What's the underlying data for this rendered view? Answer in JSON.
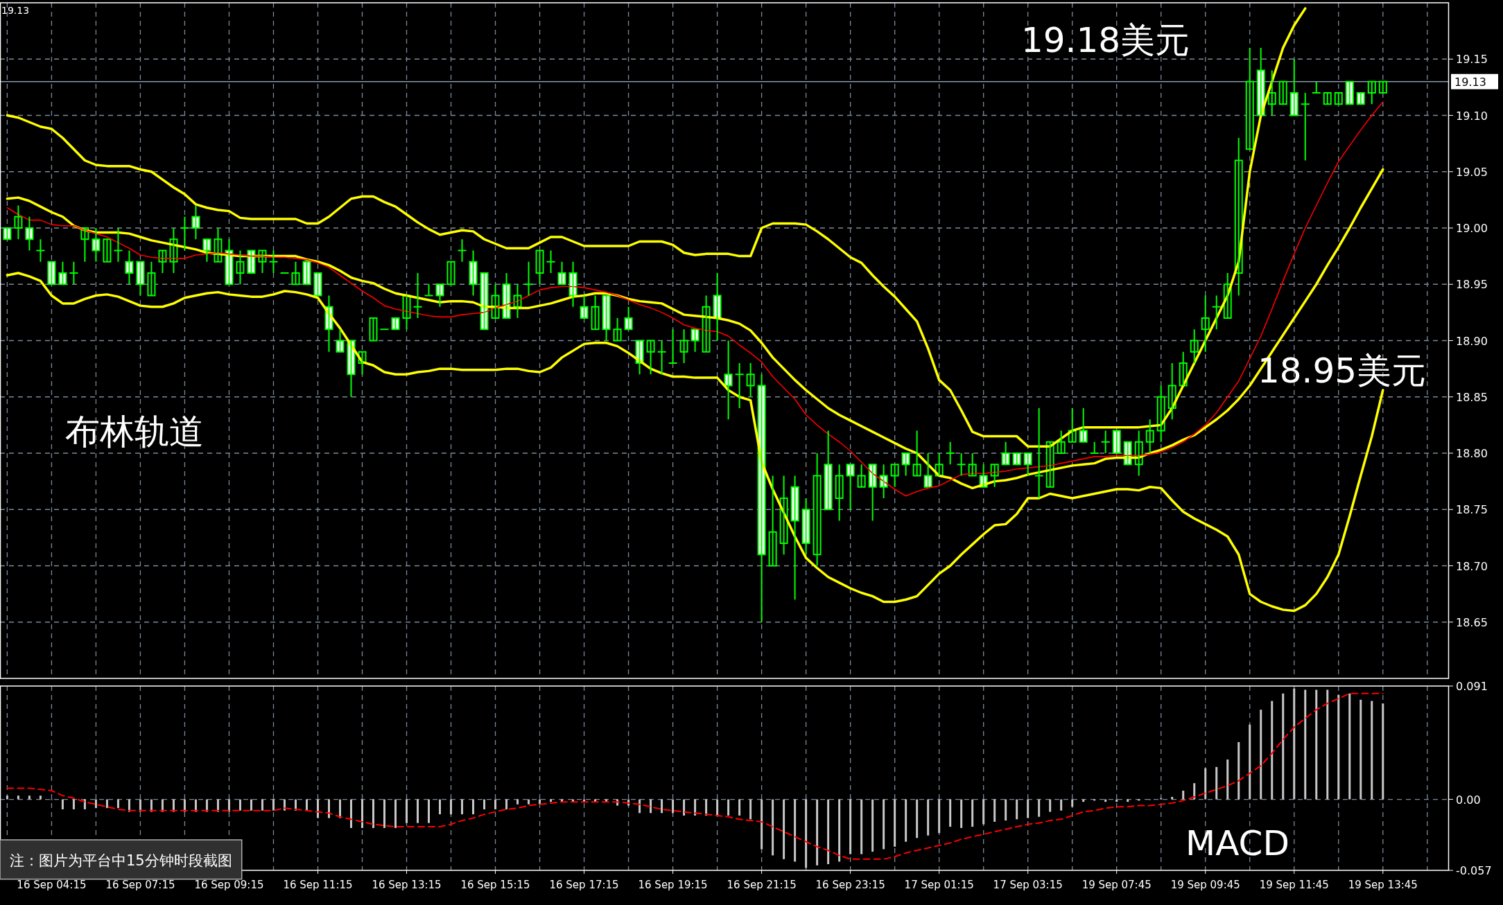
{
  "chart_data": [
    {
      "type": "candlestick",
      "color": "#00ff00",
      "categories": [
        null,
        null,
        null,
        null,
        null,
        null,
        null,
        null,
        null,
        null,
        null,
        null,
        null,
        null,
        null,
        null,
        null,
        null,
        null,
        null,
        null,
        null,
        null,
        null,
        null,
        null,
        null,
        null,
        null,
        null,
        null,
        null,
        null,
        null,
        null,
        null,
        null,
        null,
        null,
        null,
        null,
        null,
        null,
        null,
        null,
        null,
        null,
        null,
        null,
        null,
        null,
        null,
        null,
        null,
        null,
        null,
        null,
        null,
        null,
        null,
        null,
        null,
        null,
        null,
        null,
        null,
        null,
        null,
        null,
        null,
        null,
        null,
        null,
        null,
        null,
        null,
        null,
        null,
        null,
        null,
        null,
        null,
        null,
        null,
        null,
        null,
        null,
        null,
        null,
        null,
        null,
        null,
        null,
        null,
        null,
        null,
        null,
        null,
        null,
        null,
        null,
        null,
        null,
        null,
        null,
        null,
        null,
        null,
        null,
        null,
        null,
        null,
        null,
        null,
        null,
        null,
        null,
        null,
        null,
        null,
        null,
        null,
        null,
        null,
        null
      ],
      "ohlc": [
        [
          19.0,
          19.0,
          18.99,
          18.99
        ],
        [
          19.0,
          19.02,
          18.99,
          19.01
        ],
        [
          19.0,
          19.01,
          18.98,
          18.99
        ],
        [
          18.98,
          18.99,
          18.97,
          18.98
        ],
        [
          18.97,
          18.97,
          18.95,
          18.95
        ],
        [
          18.96,
          18.97,
          18.95,
          18.95
        ],
        [
          18.96,
          18.97,
          18.95,
          18.96
        ],
        [
          18.99,
          19.0,
          18.97,
          19.0
        ],
        [
          18.99,
          19.0,
          18.97,
          18.98
        ],
        [
          18.97,
          18.99,
          18.97,
          18.99
        ],
        [
          18.98,
          19.0,
          18.97,
          18.98
        ],
        [
          18.97,
          18.98,
          18.95,
          18.96
        ],
        [
          18.97,
          18.97,
          18.94,
          18.95
        ],
        [
          18.94,
          18.97,
          18.94,
          18.96
        ],
        [
          18.97,
          18.98,
          18.96,
          18.98
        ],
        [
          18.97,
          19.0,
          18.96,
          18.99
        ],
        [
          19.0,
          19.01,
          18.98,
          19.0
        ],
        [
          19.01,
          19.02,
          18.99,
          19.0
        ],
        [
          18.99,
          18.99,
          18.97,
          18.98
        ],
        [
          18.97,
          19.0,
          18.97,
          18.99
        ],
        [
          18.98,
          18.99,
          18.95,
          18.95
        ],
        [
          18.96,
          18.98,
          18.95,
          18.97
        ],
        [
          18.98,
          18.98,
          18.96,
          18.96
        ],
        [
          18.97,
          18.98,
          18.96,
          18.98
        ],
        [
          18.97,
          18.98,
          18.96,
          18.97
        ],
        [
          18.96,
          18.96,
          18.96,
          18.96
        ],
        [
          18.95,
          18.97,
          18.95,
          18.96
        ],
        [
          18.97,
          18.97,
          18.95,
          18.95
        ],
        [
          18.96,
          18.96,
          18.94,
          18.94
        ],
        [
          18.93,
          18.94,
          18.89,
          18.91
        ],
        [
          18.9,
          18.91,
          18.89,
          18.89
        ],
        [
          18.9,
          18.9,
          18.85,
          18.87
        ],
        [
          18.88,
          18.89,
          18.87,
          18.89
        ],
        [
          18.9,
          18.92,
          18.9,
          18.92
        ],
        [
          18.91,
          18.91,
          18.91,
          18.91
        ],
        [
          18.92,
          18.92,
          18.91,
          18.91
        ],
        [
          18.92,
          18.94,
          18.91,
          18.94
        ],
        [
          18.93,
          18.96,
          18.92,
          18.93
        ],
        [
          18.94,
          18.95,
          18.94,
          18.94
        ],
        [
          18.95,
          18.95,
          18.93,
          18.94
        ],
        [
          18.95,
          18.97,
          18.95,
          18.97
        ],
        [
          18.98,
          18.99,
          18.97,
          18.98
        ],
        [
          18.97,
          18.98,
          18.94,
          18.95
        ],
        [
          18.96,
          18.96,
          18.91,
          18.91
        ],
        [
          18.92,
          18.95,
          18.92,
          18.94
        ],
        [
          18.95,
          18.96,
          18.92,
          18.92
        ],
        [
          18.93,
          18.95,
          18.92,
          18.94
        ],
        [
          18.95,
          18.97,
          18.94,
          18.95
        ],
        [
          18.96,
          18.98,
          18.95,
          18.98
        ],
        [
          18.97,
          18.98,
          18.96,
          18.97
        ],
        [
          18.96,
          18.97,
          18.95,
          18.95
        ],
        [
          18.96,
          18.97,
          18.93,
          18.94
        ],
        [
          18.93,
          18.94,
          18.92,
          18.92
        ],
        [
          18.91,
          18.94,
          18.91,
          18.93
        ],
        [
          18.94,
          18.94,
          18.9,
          18.91
        ],
        [
          18.9,
          18.92,
          18.9,
          18.91
        ],
        [
          18.92,
          18.93,
          18.91,
          18.91
        ],
        [
          18.9,
          18.9,
          18.87,
          18.88
        ],
        [
          18.89,
          18.9,
          18.87,
          18.9
        ],
        [
          18.89,
          18.9,
          18.87,
          18.89
        ],
        [
          18.88,
          18.91,
          18.88,
          18.88
        ],
        [
          18.89,
          18.91,
          18.88,
          18.9
        ],
        [
          18.91,
          18.91,
          18.89,
          18.9
        ],
        [
          18.89,
          18.94,
          18.89,
          18.93
        ],
        [
          18.94,
          18.96,
          18.9,
          18.92
        ],
        [
          18.87,
          18.9,
          18.83,
          18.86
        ],
        [
          18.87,
          18.88,
          18.84,
          18.87
        ],
        [
          18.86,
          18.88,
          18.85,
          18.87
        ],
        [
          18.86,
          18.87,
          18.65,
          18.71
        ],
        [
          18.7,
          18.78,
          18.7,
          18.73
        ],
        [
          18.72,
          18.78,
          18.71,
          18.76
        ],
        [
          18.77,
          18.78,
          18.67,
          18.74
        ],
        [
          18.75,
          18.76,
          18.71,
          18.72
        ],
        [
          18.71,
          18.8,
          18.7,
          18.78
        ],
        [
          18.79,
          18.82,
          18.75,
          18.75
        ],
        [
          18.76,
          18.79,
          18.74,
          18.78
        ],
        [
          18.79,
          18.79,
          18.75,
          18.78
        ],
        [
          18.77,
          18.79,
          18.77,
          18.78
        ],
        [
          18.79,
          18.79,
          18.74,
          18.77
        ],
        [
          18.78,
          18.79,
          18.76,
          18.77
        ],
        [
          18.78,
          18.79,
          18.77,
          18.79
        ],
        [
          18.8,
          18.8,
          18.78,
          18.79
        ],
        [
          18.78,
          18.82,
          18.78,
          18.79
        ],
        [
          18.78,
          18.8,
          18.77,
          18.77
        ],
        [
          18.78,
          18.8,
          18.78,
          18.79
        ],
        [
          18.8,
          18.81,
          18.79,
          18.8
        ],
        [
          18.79,
          18.8,
          18.78,
          18.79
        ],
        [
          18.78,
          18.8,
          18.78,
          18.79
        ],
        [
          18.78,
          18.79,
          18.77,
          18.77
        ],
        [
          18.78,
          18.79,
          18.77,
          18.79
        ],
        [
          18.8,
          18.81,
          18.79,
          18.79
        ],
        [
          18.8,
          18.8,
          18.79,
          18.79
        ],
        [
          18.8,
          18.8,
          18.78,
          18.79
        ],
        [
          18.78,
          18.84,
          18.76,
          18.78
        ],
        [
          18.77,
          18.81,
          18.77,
          18.81
        ],
        [
          18.8,
          18.82,
          18.8,
          18.81
        ],
        [
          18.81,
          18.84,
          18.81,
          18.82
        ],
        [
          18.82,
          18.84,
          18.81,
          18.81
        ],
        [
          18.8,
          18.81,
          18.8,
          18.8
        ],
        [
          18.81,
          18.82,
          18.8,
          18.81
        ],
        [
          18.82,
          18.82,
          18.8,
          18.8
        ],
        [
          18.81,
          18.81,
          18.79,
          18.79
        ],
        [
          18.79,
          18.82,
          18.78,
          18.81
        ],
        [
          18.81,
          18.83,
          18.8,
          18.82
        ],
        [
          18.82,
          18.86,
          18.81,
          18.85
        ],
        [
          18.84,
          18.88,
          18.83,
          18.86
        ],
        [
          18.86,
          18.89,
          18.86,
          18.88
        ],
        [
          18.89,
          18.91,
          18.88,
          18.9
        ],
        [
          18.91,
          18.94,
          18.89,
          18.92
        ],
        [
          18.93,
          18.94,
          18.91,
          18.93
        ],
        [
          18.92,
          18.96,
          18.92,
          18.95
        ],
        [
          18.96,
          19.08,
          18.94,
          19.06
        ],
        [
          19.07,
          19.16,
          19.07,
          19.13
        ],
        [
          19.14,
          19.16,
          19.1,
          19.1
        ],
        [
          19.11,
          19.14,
          19.1,
          19.12
        ],
        [
          19.11,
          19.13,
          19.11,
          19.13
        ],
        [
          19.12,
          19.15,
          19.1,
          19.1
        ],
        [
          19.11,
          19.12,
          19.06,
          19.11
        ],
        [
          19.12,
          19.13,
          19.12,
          19.12
        ],
        [
          19.11,
          19.12,
          19.11,
          19.12
        ],
        [
          19.11,
          19.12,
          19.11,
          19.12
        ],
        [
          19.13,
          19.13,
          19.11,
          19.11
        ],
        [
          19.12,
          19.12,
          19.11,
          19.11
        ],
        [
          19.12,
          19.13,
          19.11,
          19.13
        ],
        [
          19.12,
          19.13,
          19.12,
          19.13
        ]
      ],
      "series": [
        {
          "type": "line",
          "color": "#ffff00",
          "values": [
            19.1,
            19.098,
            19.094,
            19.09,
            19.088,
            19.08,
            19.07,
            19.06,
            19.056,
            19.055,
            19.055,
            19.055,
            19.052,
            19.05,
            19.043,
            19.036,
            19.03,
            19.021,
            19.018,
            19.016,
            19.015,
            19.009,
            19.008,
            19.008,
            19.008,
            19.008,
            19.008,
            19.004,
            19.004,
            19.01,
            19.018,
            19.026,
            19.028,
            19.028,
            19.023,
            19.019,
            19.012,
            19.005,
            18.999,
            18.994,
            18.996,
            18.998,
            18.997,
            18.99,
            18.986,
            18.982,
            18.982,
            18.982,
            18.987,
            18.992,
            18.992,
            18.988,
            18.984,
            18.984,
            18.984,
            18.984,
            18.984,
            18.988,
            18.988,
            18.988,
            18.985,
            18.978,
            18.976,
            18.977,
            18.977,
            18.977,
            18.975,
            18.975,
            19.0,
            19.004,
            19.004,
            19.004,
            19.003,
            18.997,
            18.99,
            18.982,
            18.974,
            18.969,
            18.958,
            18.948,
            18.939,
            18.928,
            18.917,
            18.893,
            18.865,
            18.856,
            18.838,
            18.819,
            18.815,
            18.815,
            18.815,
            18.815,
            18.806,
            18.806,
            18.806,
            18.813,
            18.82,
            18.823,
            18.823,
            18.823,
            18.823,
            18.823,
            18.823,
            18.824,
            18.825,
            18.84,
            18.86,
            18.88,
            18.9,
            18.92,
            18.94,
            18.97,
            19.05,
            19.1,
            19.13,
            19.16,
            19.18,
            19.195,
            null,
            null,
            null,
            null,
            null,
            null,
            null
          ]
        },
        {
          "type": "line",
          "color": "#ffff00",
          "values": [
            19.026,
            19.027,
            19.024,
            19.019,
            19.014,
            19.01,
            19.002,
            18.998,
            18.996,
            18.996,
            18.996,
            18.995,
            18.992,
            18.989,
            18.987,
            18.985,
            18.983,
            18.981,
            18.978,
            18.977,
            18.976,
            18.975,
            18.975,
            18.975,
            18.975,
            18.975,
            18.975,
            18.972,
            18.97,
            18.967,
            18.962,
            18.956,
            18.953,
            18.951,
            18.946,
            18.942,
            18.94,
            18.938,
            18.936,
            18.934,
            18.935,
            18.935,
            18.934,
            18.93,
            18.93,
            18.929,
            18.929,
            18.929,
            18.931,
            18.933,
            18.936,
            18.939,
            18.94,
            18.942,
            18.942,
            18.94,
            18.937,
            18.935,
            18.934,
            18.933,
            18.928,
            18.923,
            18.922,
            18.921,
            18.92,
            18.918,
            18.915,
            18.909,
            18.898,
            18.885,
            18.875,
            18.865,
            18.856,
            18.848,
            18.84,
            18.834,
            18.829,
            18.824,
            18.819,
            18.814,
            18.809,
            18.804,
            18.8,
            18.79,
            18.78,
            18.778,
            18.773,
            18.769,
            18.772,
            18.775,
            18.776,
            18.778,
            18.781,
            18.783,
            18.785,
            18.787,
            18.789,
            18.79,
            18.791,
            18.795,
            18.796,
            18.796,
            18.796,
            18.8,
            18.803,
            18.807,
            18.812,
            18.816,
            18.823,
            18.83,
            18.838,
            18.848,
            18.86,
            18.875,
            18.89,
            18.905,
            18.92,
            18.935,
            18.95,
            18.967,
            18.983,
            19.0,
            19.018,
            19.035,
            19.052
          ]
        },
        {
          "type": "line",
          "color": "#ffff00",
          "values": [
            18.958,
            18.96,
            18.957,
            18.953,
            18.94,
            18.933,
            18.933,
            18.937,
            18.94,
            18.941,
            18.939,
            18.935,
            18.931,
            18.93,
            18.93,
            18.933,
            18.938,
            18.94,
            18.942,
            18.943,
            18.941,
            18.94,
            18.939,
            18.939,
            18.941,
            18.944,
            18.943,
            18.941,
            18.938,
            18.924,
            18.911,
            18.896,
            18.881,
            18.878,
            18.872,
            18.87,
            18.87,
            18.872,
            18.873,
            18.875,
            18.875,
            18.874,
            18.874,
            18.874,
            18.874,
            18.875,
            18.875,
            18.873,
            18.872,
            18.876,
            18.885,
            18.891,
            18.897,
            18.898,
            18.898,
            18.895,
            18.889,
            18.882,
            18.875,
            18.871,
            18.868,
            18.868,
            18.867,
            18.867,
            18.867,
            18.856,
            18.85,
            18.847,
            18.792,
            18.768,
            18.747,
            18.726,
            18.707,
            18.698,
            18.69,
            18.685,
            18.68,
            18.676,
            18.673,
            18.668,
            18.668,
            18.67,
            18.673,
            18.683,
            18.693,
            18.7,
            18.71,
            18.719,
            18.728,
            18.736,
            18.737,
            18.746,
            18.76,
            18.76,
            18.764,
            18.762,
            18.76,
            18.762,
            18.764,
            18.766,
            18.768,
            18.768,
            18.767,
            18.77,
            18.769,
            18.758,
            18.748,
            18.742,
            18.737,
            18.732,
            18.726,
            18.71,
            18.675,
            18.668,
            18.664,
            18.661,
            18.66,
            18.665,
            18.675,
            18.69,
            18.71,
            18.744,
            18.78,
            18.815,
            18.856
          ]
        },
        {
          "type": "line",
          "color": "#ff0000",
          "values": [
            19.018,
            19.012,
            19.007,
            19.007,
            19.003,
            19.002,
            19.002,
            18.998,
            18.995,
            18.992,
            18.987,
            18.982,
            18.976,
            18.974,
            18.973,
            18.973,
            18.973,
            18.976,
            18.977,
            18.978,
            18.977,
            18.976,
            18.975,
            18.975,
            18.974,
            18.974,
            18.973,
            18.972,
            18.969,
            18.965,
            18.958,
            18.951,
            18.944,
            18.938,
            18.931,
            18.928,
            18.926,
            18.924,
            18.922,
            18.921,
            18.921,
            18.923,
            18.924,
            18.925,
            18.929,
            18.932,
            18.935,
            18.94,
            18.945,
            18.947,
            18.948,
            18.948,
            18.947,
            18.945,
            18.943,
            18.94,
            18.936,
            18.932,
            18.929,
            18.925,
            18.92,
            18.914,
            18.911,
            18.909,
            18.908,
            18.904,
            18.896,
            18.889,
            18.881,
            18.868,
            18.858,
            18.848,
            18.834,
            18.825,
            18.817,
            18.81,
            18.802,
            18.792,
            18.782,
            18.775,
            18.768,
            18.762,
            18.766,
            18.769,
            18.771,
            18.776,
            18.781,
            18.782,
            18.782,
            18.783,
            18.784,
            18.786,
            18.787,
            18.788,
            18.789,
            18.791,
            18.793,
            18.795,
            18.797,
            18.797,
            18.798,
            18.798,
            18.798,
            18.799,
            18.801,
            18.805,
            18.81,
            18.817,
            18.825,
            18.836,
            18.85,
            18.864,
            18.884,
            18.904,
            18.928,
            18.953,
            18.977,
            19.0,
            19.02,
            19.04,
            19.059,
            19.073,
            19.087,
            19.1,
            19.112
          ]
        }
      ],
      "ylim": [
        18.6,
        19.2
      ],
      "yticks": [
        18.65,
        {
          "value": 18.7,
          "label": "18.70"
        },
        18.75,
        {
          "value": 18.8,
          "label": "18.80"
        },
        18.85,
        {
          "value": 18.9,
          "label": "18.90"
        },
        18.95,
        {
          "value": 19.0,
          "label": "19.00"
        },
        19.05,
        {
          "value": 19.1,
          "label": "19.10"
        },
        19.15
      ],
      "grid": true,
      "ref_lines": [
        {
          "axis": "y",
          "value": 19.13,
          "label": "19.13",
          "color": "#8a9aaa"
        }
      ],
      "annotations": [
        "布林轨道",
        "19.18美元",
        "18.95美元",
        "19.13"
      ]
    },
    {
      "type": "bar",
      "categories": [
        null,
        null,
        null,
        null,
        "16 Sep 04:15",
        null,
        null,
        null,
        null,
        null,
        null,
        null,
        "16 Sep 07:15",
        null,
        null,
        null,
        null,
        null,
        null,
        null,
        "16 Sep 09:15",
        null,
        null,
        null,
        null,
        null,
        null,
        null,
        "16 Sep 11:15",
        null,
        null,
        null,
        null,
        null,
        null,
        null,
        "16 Sep 13:15",
        null,
        null,
        null,
        null,
        null,
        null,
        null,
        "16 Sep 15:15",
        null,
        null,
        null,
        null,
        null,
        null,
        null,
        "16 Sep 17:15",
        null,
        null,
        null,
        null,
        null,
        null,
        null,
        "16 Sep 19:15",
        null,
        null,
        null,
        null,
        null,
        null,
        null,
        "16 Sep 21:15",
        null,
        null,
        null,
        null,
        null,
        null,
        null,
        "16 Sep 23:15",
        null,
        null,
        null,
        null,
        null,
        null,
        null,
        "17 Sep 01:15",
        null,
        null,
        null,
        null,
        null,
        null,
        null,
        "17 Sep 03:15",
        null,
        null,
        null,
        null,
        null,
        null,
        null,
        "19 Sep 07:45",
        null,
        null,
        null,
        null,
        null,
        null,
        null,
        "19 Sep 09:45",
        null,
        null,
        null,
        null,
        null,
        null,
        null,
        "19 Sep 11:45",
        null,
        null,
        null,
        null,
        null,
        null,
        null,
        "19 Sep 13:45"
      ],
      "series": [
        {
          "type": "bar",
          "color": "#c8c8c8",
          "values": [
            0.003,
            0.003,
            0.003,
            0.003,
            0.0,
            -0.008,
            -0.008,
            -0.008,
            -0.007,
            -0.007,
            -0.007,
            -0.01,
            -0.01,
            -0.01,
            -0.01,
            -0.01,
            -0.01,
            -0.01,
            -0.01,
            -0.01,
            -0.01,
            -0.009,
            -0.009,
            -0.009,
            -0.009,
            -0.009,
            -0.009,
            -0.009,
            -0.015,
            -0.015,
            -0.015,
            -0.023,
            -0.023,
            -0.023,
            -0.023,
            -0.023,
            -0.019,
            -0.019,
            -0.019,
            -0.012,
            -0.012,
            -0.012,
            -0.012,
            -0.008,
            -0.008,
            -0.008,
            -0.004,
            -0.004,
            -0.004,
            -0.002,
            -0.002,
            -0.002,
            -0.002,
            -0.002,
            -0.002,
            -0.005,
            -0.005,
            -0.011,
            -0.011,
            -0.011,
            -0.011,
            -0.013,
            -0.013,
            -0.013,
            -0.013,
            -0.013,
            -0.013,
            -0.016,
            -0.04,
            -0.045,
            -0.048,
            -0.05,
            -0.055,
            -0.053,
            -0.052,
            -0.05,
            -0.044,
            -0.044,
            -0.042,
            -0.04,
            -0.038,
            -0.034,
            -0.031,
            -0.029,
            -0.027,
            -0.022,
            -0.023,
            -0.022,
            -0.02,
            -0.018,
            -0.017,
            -0.016,
            -0.015,
            -0.014,
            -0.01,
            -0.009,
            -0.006,
            -0.002,
            -0.001,
            -0.002,
            -0.002,
            -0.002,
            -0.001,
            0.0,
            0.001,
            0.002,
            0.007,
            0.013,
            0.025,
            0.026,
            0.032,
            0.046,
            0.06,
            0.072,
            0.079,
            0.085,
            0.089,
            0.088,
            0.088,
            0.088,
            0.084,
            0.085,
            0.08,
            0.079,
            0.077
          ]
        },
        {
          "type": "line",
          "color": "#ff0000",
          "line_style": "dashed",
          "values": [
            0.009,
            0.009,
            0.009,
            0.008,
            0.007,
            0.003,
            0.001,
            -0.002,
            -0.004,
            -0.006,
            -0.008,
            -0.009,
            -0.009,
            -0.009,
            -0.009,
            -0.009,
            -0.009,
            -0.009,
            -0.009,
            -0.009,
            -0.009,
            -0.009,
            -0.009,
            -0.009,
            -0.009,
            -0.007,
            -0.008,
            -0.009,
            -0.01,
            -0.011,
            -0.014,
            -0.016,
            -0.018,
            -0.02,
            -0.021,
            -0.022,
            -0.022,
            -0.022,
            -0.022,
            -0.022,
            -0.02,
            -0.017,
            -0.015,
            -0.012,
            -0.01,
            -0.008,
            -0.007,
            -0.005,
            -0.004,
            -0.003,
            -0.002,
            -0.002,
            -0.002,
            -0.002,
            -0.002,
            -0.002,
            -0.003,
            -0.004,
            -0.006,
            -0.008,
            -0.009,
            -0.01,
            -0.011,
            -0.012,
            -0.013,
            -0.014,
            -0.016,
            -0.017,
            -0.018,
            -0.022,
            -0.026,
            -0.03,
            -0.034,
            -0.038,
            -0.041,
            -0.045,
            -0.048,
            -0.048,
            -0.048,
            -0.048,
            -0.046,
            -0.043,
            -0.041,
            -0.039,
            -0.037,
            -0.035,
            -0.032,
            -0.03,
            -0.028,
            -0.026,
            -0.024,
            -0.022,
            -0.02,
            -0.019,
            -0.017,
            -0.016,
            -0.013,
            -0.01,
            -0.009,
            -0.007,
            -0.006,
            -0.006,
            -0.005,
            -0.005,
            -0.004,
            -0.003,
            -0.001,
            0.002,
            0.005,
            0.008,
            0.011,
            0.015,
            0.021,
            0.027,
            0.037,
            0.048,
            0.058,
            0.065,
            0.072,
            0.077,
            0.081,
            0.085,
            0.085,
            0.085,
            0.085
          ]
        }
      ],
      "ylim": [
        -0.057,
        0.091
      ],
      "yticks": [
        {
          "value": -0.057,
          "label": "-0.057"
        },
        {
          "value": 0,
          "label": "0.00"
        },
        0.091
      ],
      "grid": true,
      "annotations": [
        "MACD",
        "注：图片为平台中15分钟时段截图"
      ]
    }
  ]
}
